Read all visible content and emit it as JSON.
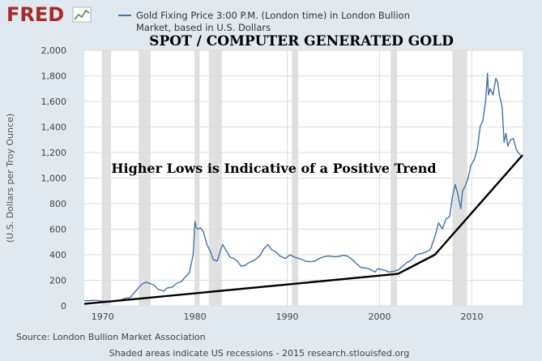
{
  "header": {
    "logo_text": "FRED",
    "legend_line1": "Gold Fixing Price 3:00 P.M. (London time) in London Bullion",
    "legend_line2": "Market, based in U.S. Dollars"
  },
  "annotations": {
    "title": "SPOT / COMPUTER GENERATED GOLD",
    "trend_note": "Higher Lows is Indicative of a Positive Trend"
  },
  "footer": {
    "source": "Source: London Bullion Market Association",
    "note": "Shaded areas indicate US recessions - 2015 research.stlouisfed.org"
  },
  "colors": {
    "background": "#e1e9f0",
    "plot_background": "#ffffff",
    "series_line": "#4572a7",
    "recession_band": "#e0e0e0",
    "trend_line": "#000000",
    "grid": "#dcdcdc",
    "logo_red": "#a62a2a",
    "text": "#444444"
  },
  "chart_data": {
    "type": "line",
    "ylabel": "(U.S. Dollars per Troy Ounce)",
    "xlim": [
      1968,
      2015.5
    ],
    "ylim": [
      0,
      2000
    ],
    "x_ticks": [
      1970,
      1980,
      1990,
      2000,
      2010
    ],
    "y_ticks": [
      0,
      200,
      400,
      600,
      800,
      1000,
      1200,
      1400,
      1600,
      1800,
      2000
    ],
    "y_tick_labels": [
      "0",
      "200",
      "400",
      "600",
      "800",
      "1,000",
      "1,200",
      "1,400",
      "1,600",
      "1,800",
      "2,000"
    ],
    "grid": true,
    "recessions": [
      [
        1969.9,
        1970.9
      ],
      [
        1973.9,
        1975.2
      ],
      [
        1980.0,
        1980.5
      ],
      [
        1981.5,
        1982.9
      ],
      [
        1990.5,
        1991.2
      ],
      [
        2001.2,
        2001.9
      ],
      [
        2007.9,
        2009.5
      ]
    ],
    "series": [
      {
        "name": "Gold Fixing Price 3:00 P.M. (London time) in London Bullion Market, based in U.S. Dollars",
        "x": [
          1968.0,
          1968.5,
          1969.0,
          1969.5,
          1970.0,
          1970.5,
          1971.0,
          1971.5,
          1972.0,
          1972.5,
          1973.0,
          1973.5,
          1974.0,
          1974.3,
          1974.7,
          1975.0,
          1975.5,
          1976.0,
          1976.6,
          1977.0,
          1977.5,
          1978.0,
          1978.5,
          1979.0,
          1979.4,
          1979.8,
          1980.0,
          1980.1,
          1980.3,
          1980.6,
          1980.9,
          1981.3,
          1981.7,
          1982.0,
          1982.4,
          1982.7,
          1983.0,
          1983.4,
          1983.8,
          1984.2,
          1984.6,
          1985.0,
          1985.5,
          1986.0,
          1986.5,
          1987.0,
          1987.5,
          1987.9,
          1988.3,
          1988.8,
          1989.2,
          1989.8,
          1990.3,
          1990.8,
          1991.5,
          1992.0,
          1992.5,
          1993.0,
          1993.6,
          1994.0,
          1994.5,
          1995.0,
          1995.5,
          1996.0,
          1996.5,
          1997.0,
          1997.5,
          1998.0,
          1998.5,
          1999.0,
          1999.5,
          1999.8,
          2000.5,
          2001.0,
          2001.5,
          2002.0,
          2002.5,
          2003.0,
          2003.5,
          2004.0,
          2004.5,
          2005.0,
          2005.5,
          2006.0,
          2006.4,
          2006.8,
          2007.2,
          2007.6,
          2007.9,
          2008.2,
          2008.5,
          2008.8,
          2009.0,
          2009.3,
          2009.6,
          2009.9,
          2010.3,
          2010.6,
          2010.9,
          2011.2,
          2011.5,
          2011.7,
          2011.8,
          2012.0,
          2012.3,
          2012.6,
          2012.8,
          2013.0,
          2013.3,
          2013.5,
          2013.7,
          2013.9,
          2014.2,
          2014.5,
          2014.8,
          2015.0,
          2015.3
        ],
        "values": [
          40,
          40,
          43,
          42,
          36,
          37,
          38,
          42,
          48,
          60,
          65,
          110,
          150,
          172,
          185,
          178,
          165,
          130,
          115,
          140,
          145,
          175,
          190,
          230,
          260,
          400,
          660,
          620,
          600,
          610,
          580,
          480,
          420,
          360,
          350,
          420,
          480,
          430,
          380,
          370,
          350,
          310,
          320,
          345,
          360,
          390,
          450,
          480,
          440,
          420,
          390,
          370,
          400,
          380,
          365,
          350,
          345,
          350,
          375,
          385,
          390,
          385,
          385,
          395,
          390,
          365,
          330,
          300,
          295,
          285,
          265,
          290,
          280,
          265,
          270,
          280,
          310,
          340,
          360,
          400,
          410,
          420,
          440,
          540,
          650,
          600,
          680,
          700,
          850,
          950,
          870,
          760,
          900,
          940,
          1000,
          1100,
          1150,
          1230,
          1400,
          1450,
          1600,
          1820,
          1650,
          1700,
          1650,
          1780,
          1750,
          1650,
          1550,
          1280,
          1350,
          1250,
          1300,
          1310,
          1230,
          1200,
          1180
        ]
      },
      {
        "name": "Trend line",
        "x": [
          1968,
          2002,
          2006,
          2015.5
        ],
        "values": [
          15,
          250,
          400,
          1180
        ]
      }
    ]
  }
}
